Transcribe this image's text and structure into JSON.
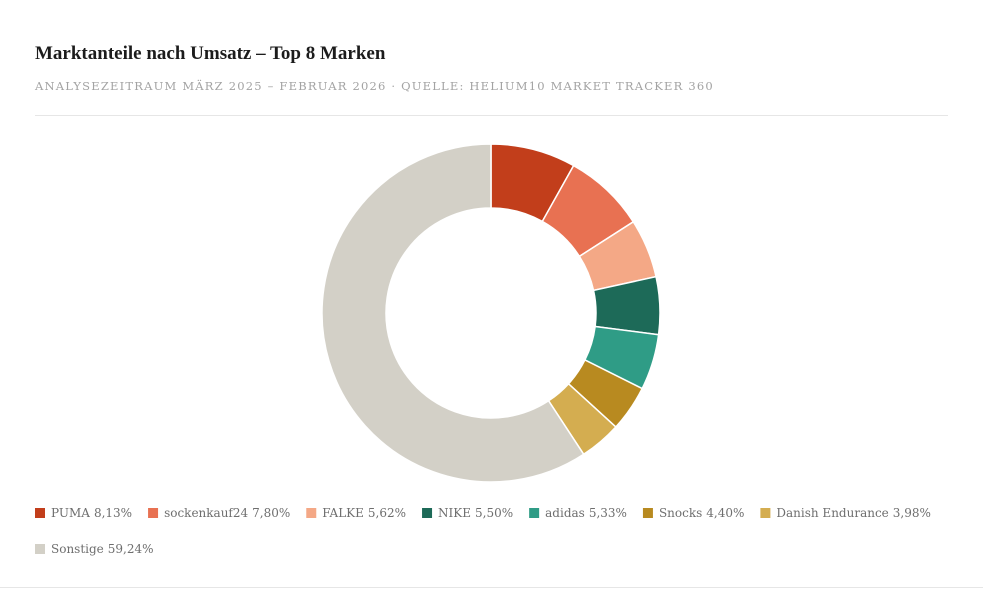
{
  "chart_data": {
    "type": "donut",
    "title": "Marktanteile nach Umsatz – Top 8 Marken",
    "subtitle": "Analysezeitraum März 2025 – Februar 2026 · Quelle: Helium10 Market Tracker 360",
    "categories": [
      "PUMA",
      "sockenkauf24",
      "FALKE",
      "NIKE",
      "adidas",
      "Snocks",
      "Danish Endurance",
      "Sonstige"
    ],
    "values": [
      8.13,
      7.8,
      5.62,
      5.5,
      5.33,
      4.4,
      3.98,
      59.24
    ],
    "value_labels": [
      "8,13%",
      "7,80%",
      "5,62%",
      "5,50%",
      "5,33%",
      "4,40%",
      "3,98%",
      "59,24%"
    ],
    "colors": [
      "#c23e1b",
      "#e87152",
      "#f4a886",
      "#1d6a58",
      "#2f9c86",
      "#b88a20",
      "#d4ad50",
      "#d3d0c7"
    ],
    "legend": "bottom"
  }
}
